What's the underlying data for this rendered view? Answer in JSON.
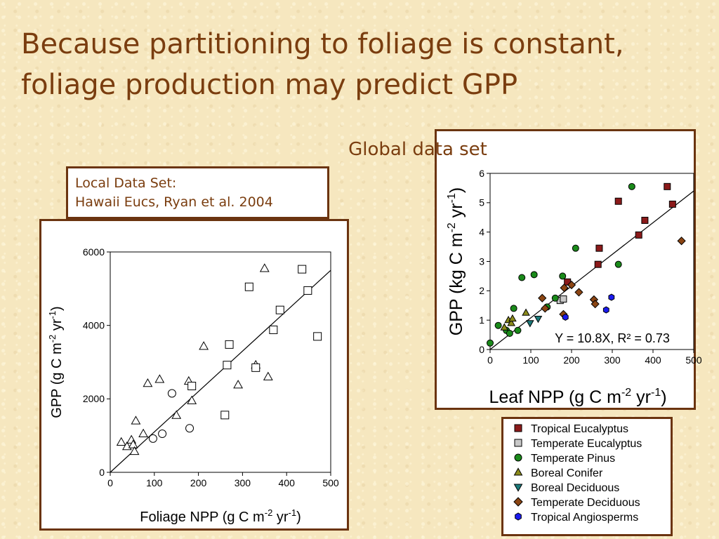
{
  "slide": {
    "title": "Because partitioning to foliage is constant, foliage production may predict GPP"
  },
  "local": {
    "caption_line1": "Local Data Set:",
    "caption_line2": "Hawaii Eucs, Ryan et al. 2004"
  },
  "global": {
    "title": "Global data set",
    "equation": "Y = 10.8X, R² = 0.73"
  },
  "chart_data": [
    {
      "type": "scatter",
      "title": "",
      "xlabel": "Foliage NPP (g C m-2 yr-1)",
      "ylabel": "GPP (g C m-2 yr-1)",
      "xlim": [
        0,
        500
      ],
      "ylim": [
        0,
        6000
      ],
      "xticks": [
        0,
        100,
        200,
        300,
        400,
        500
      ],
      "yticks": [
        0,
        2000,
        4000,
        6000
      ],
      "grid": false,
      "series": [
        {
          "marker": "triangle",
          "color": "#ffffff",
          "points": [
            [
              25,
              820
            ],
            [
              38,
              700
            ],
            [
              48,
              880
            ],
            [
              52,
              750
            ],
            [
              55,
              570
            ],
            [
              58,
              1400
            ],
            [
              75,
              1050
            ],
            [
              85,
              2420
            ],
            [
              112,
              2530
            ],
            [
              150,
              1550
            ],
            [
              178,
              2480
            ],
            [
              185,
              1950
            ],
            [
              212,
              3430
            ],
            [
              290,
              2380
            ],
            [
              330,
              2920
            ],
            [
              350,
              5550
            ],
            [
              358,
              2600
            ]
          ]
        },
        {
          "marker": "circle",
          "color": "#ffffff",
          "points": [
            [
              97,
              920
            ],
            [
              118,
              1050
            ],
            [
              140,
              2150
            ],
            [
              180,
              1200
            ]
          ]
        },
        {
          "marker": "square",
          "color": "#ffffff",
          "points": [
            [
              185,
              2350
            ],
            [
              260,
              1560
            ],
            [
              265,
              2920
            ],
            [
              270,
              3480
            ],
            [
              315,
              5050
            ],
            [
              330,
              2850
            ],
            [
              370,
              3880
            ],
            [
              385,
              4420
            ],
            [
              435,
              5530
            ],
            [
              448,
              4950
            ],
            [
              470,
              3700
            ]
          ]
        }
      ],
      "fit_line": {
        "from": [
          0,
          0
        ],
        "to": [
          500,
          5500
        ]
      }
    },
    {
      "type": "scatter",
      "title": "",
      "xlabel": "Leaf NPP (g C m-2 yr-1)",
      "ylabel": "GPP (kg C m-2 yr-1)",
      "xlim": [
        0,
        500
      ],
      "ylim": [
        0,
        6
      ],
      "xticks": [
        0,
        100,
        200,
        300,
        400,
        500
      ],
      "yticks": [
        0,
        1,
        2,
        3,
        4,
        5,
        6
      ],
      "grid": false,
      "legend_position": "below",
      "series": [
        {
          "name": "Tropical Eucalyptus",
          "marker": "square",
          "color": "#8b1a1a",
          "points": [
            [
              190,
              2.3
            ],
            [
              265,
              2.9
            ],
            [
              268,
              3.45
            ],
            [
              315,
              5.05
            ],
            [
              365,
              3.9
            ],
            [
              380,
              4.4
            ],
            [
              435,
              5.55
            ],
            [
              448,
              4.95
            ]
          ]
        },
        {
          "name": "Temperate Eucalyptus",
          "marker": "square",
          "color": "#c8c8c8",
          "points": [
            [
              172,
              1.67
            ],
            [
              180,
              1.72
            ]
          ]
        },
        {
          "name": "Temperate Pinus",
          "marker": "circle",
          "color": "#1a8a1a",
          "points": [
            [
              0,
              0.22
            ],
            [
              20,
              0.82
            ],
            [
              40,
              0.65
            ],
            [
              48,
              0.55
            ],
            [
              58,
              1.4
            ],
            [
              68,
              0.65
            ],
            [
              78,
              2.45
            ],
            [
              108,
              2.55
            ],
            [
              140,
              1.45
            ],
            [
              160,
              1.75
            ],
            [
              178,
              2.5
            ],
            [
              210,
              3.45
            ],
            [
              315,
              2.9
            ],
            [
              348,
              5.55
            ]
          ]
        },
        {
          "name": "Boreal Conifer",
          "marker": "triangle",
          "color": "#8b8b1a",
          "points": [
            [
              35,
              0.75
            ],
            [
              45,
              1.0
            ],
            [
              52,
              0.9
            ],
            [
              55,
              1.05
            ],
            [
              88,
              1.25
            ]
          ]
        },
        {
          "name": "Boreal Deciduous",
          "marker": "triangle-down",
          "color": "#1a7a7a",
          "points": [
            [
              98,
              0.9
            ],
            [
              118,
              1.05
            ]
          ]
        },
        {
          "name": "Temperate Deciduous",
          "marker": "diamond",
          "color": "#8b4513",
          "points": [
            [
              128,
              1.75
            ],
            [
              135,
              1.4
            ],
            [
              180,
              1.2
            ],
            [
              182,
              2.1
            ],
            [
              200,
              2.2
            ],
            [
              218,
              1.95
            ],
            [
              255,
              1.7
            ],
            [
              258,
              1.55
            ],
            [
              470,
              3.7
            ]
          ]
        },
        {
          "name": "Tropical Angiosperms",
          "marker": "hexagon",
          "color": "#1a1aee",
          "points": [
            [
              185,
              1.1
            ],
            [
              285,
              1.35
            ],
            [
              298,
              1.78
            ]
          ]
        }
      ],
      "fit_line": {
        "from": [
          0,
          0
        ],
        "to": [
          500,
          5.4
        ]
      }
    }
  ]
}
